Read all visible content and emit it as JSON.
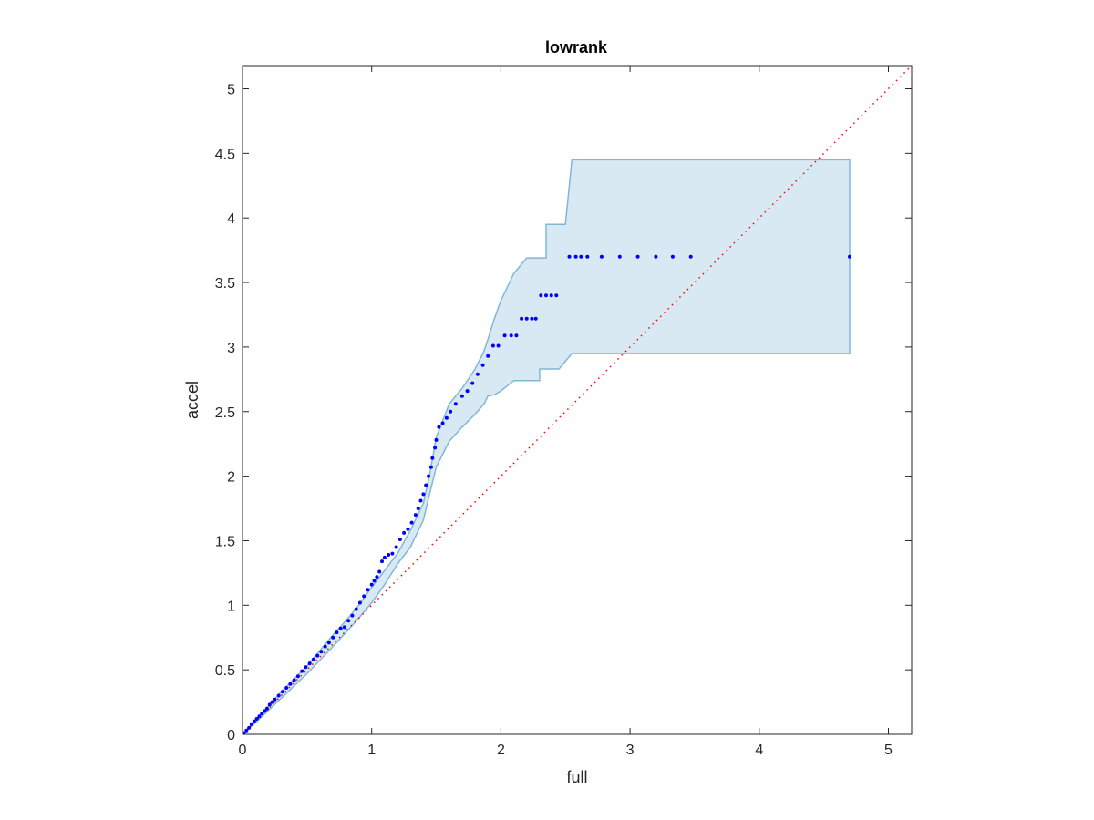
{
  "chart_data": {
    "type": "scatter",
    "title": "lowrank",
    "xlabel": "full",
    "ylabel": "accel",
    "xlim": [
      0,
      5.18
    ],
    "ylim": [
      0,
      5.18
    ],
    "xticks": [
      0,
      1,
      2,
      3,
      4,
      5
    ],
    "yticks": [
      0,
      0.5,
      1,
      1.5,
      2,
      2.5,
      3,
      3.5,
      4,
      4.5,
      5
    ],
    "xtick_labels": [
      "0",
      "1",
      "2",
      "3",
      "4",
      "5"
    ],
    "ytick_labels": [
      "0",
      "0.5",
      "1",
      "1.5",
      "2",
      "2.5",
      "3",
      "3.5",
      "4",
      "4.5",
      "5"
    ],
    "grid": false,
    "reference_line": {
      "style": "dotted",
      "color": "#ff0000",
      "from": [
        0,
        0
      ],
      "to": [
        5.18,
        5.18
      ]
    },
    "band": {
      "color": "#cfe3f1",
      "edge_color": "#7fb7d9",
      "upper": [
        [
          0,
          0
        ],
        [
          0.1,
          0.11
        ],
        [
          0.3,
          0.33
        ],
        [
          0.5,
          0.53
        ],
        [
          0.7,
          0.77
        ],
        [
          0.8,
          0.88
        ],
        [
          0.9,
          1.0
        ],
        [
          1.0,
          1.14
        ],
        [
          1.1,
          1.27
        ],
        [
          1.2,
          1.4
        ],
        [
          1.3,
          1.58
        ],
        [
          1.4,
          1.79
        ],
        [
          1.45,
          2.02
        ],
        [
          1.5,
          2.3
        ],
        [
          1.6,
          2.56
        ],
        [
          1.7,
          2.68
        ],
        [
          1.8,
          2.83
        ],
        [
          1.87,
          2.97
        ],
        [
          1.9,
          3.06
        ],
        [
          1.95,
          3.22
        ],
        [
          2.0,
          3.36
        ],
        [
          2.1,
          3.57
        ],
        [
          2.2,
          3.69
        ],
        [
          2.35,
          3.69
        ],
        [
          2.35,
          3.95
        ],
        [
          2.5,
          3.95
        ],
        [
          2.55,
          4.45
        ],
        [
          4.7,
          4.45
        ]
      ],
      "lower": [
        [
          0,
          0
        ],
        [
          0.1,
          0.09
        ],
        [
          0.3,
          0.28
        ],
        [
          0.5,
          0.47
        ],
        [
          0.7,
          0.68
        ],
        [
          0.8,
          0.79
        ],
        [
          0.9,
          0.9
        ],
        [
          1.0,
          1.02
        ],
        [
          1.1,
          1.16
        ],
        [
          1.2,
          1.32
        ],
        [
          1.3,
          1.45
        ],
        [
          1.4,
          1.66
        ],
        [
          1.45,
          1.87
        ],
        [
          1.5,
          2.07
        ],
        [
          1.6,
          2.27
        ],
        [
          1.7,
          2.38
        ],
        [
          1.8,
          2.48
        ],
        [
          1.87,
          2.56
        ],
        [
          1.9,
          2.62
        ],
        [
          1.95,
          2.63
        ],
        [
          2.0,
          2.66
        ],
        [
          2.1,
          2.74
        ],
        [
          2.3,
          2.74
        ],
        [
          2.3,
          2.83
        ],
        [
          2.45,
          2.83
        ],
        [
          2.55,
          2.95
        ],
        [
          4.7,
          2.95
        ]
      ]
    },
    "series": [
      {
        "color": "#0000ff",
        "x": [
          0.01,
          0.03,
          0.05,
          0.07,
          0.09,
          0.11,
          0.13,
          0.15,
          0.17,
          0.19,
          0.21,
          0.23,
          0.25,
          0.28,
          0.31,
          0.34,
          0.37,
          0.4,
          0.43,
          0.46,
          0.49,
          0.52,
          0.55,
          0.58,
          0.61,
          0.64,
          0.67,
          0.7,
          0.73,
          0.76,
          0.79,
          0.82,
          0.85,
          0.88,
          0.91,
          0.94,
          0.97,
          1.0,
          1.02,
          1.04,
          1.06,
          1.08,
          1.1,
          1.13,
          1.16,
          1.19,
          1.22,
          1.25,
          1.28,
          1.31,
          1.34,
          1.36,
          1.38,
          1.4,
          1.42,
          1.44,
          1.46,
          1.47,
          1.49,
          1.5,
          1.52,
          1.55,
          1.58,
          1.61,
          1.65,
          1.7,
          1.74,
          1.78,
          1.82,
          1.86,
          1.9,
          1.94,
          1.98,
          2.03,
          2.08,
          2.12,
          2.16,
          2.2,
          2.24,
          2.27,
          2.31,
          2.35,
          2.39,
          2.43,
          2.53,
          2.58,
          2.62,
          2.67,
          2.78,
          2.92,
          3.06,
          3.2,
          3.33,
          3.47,
          4.7
        ],
        "y": [
          0.01,
          0.03,
          0.05,
          0.08,
          0.1,
          0.12,
          0.14,
          0.16,
          0.18,
          0.2,
          0.23,
          0.25,
          0.27,
          0.3,
          0.33,
          0.36,
          0.39,
          0.42,
          0.45,
          0.49,
          0.52,
          0.55,
          0.58,
          0.61,
          0.64,
          0.68,
          0.71,
          0.75,
          0.79,
          0.82,
          0.83,
          0.88,
          0.92,
          0.97,
          1.02,
          1.07,
          1.12,
          1.16,
          1.19,
          1.22,
          1.26,
          1.34,
          1.37,
          1.39,
          1.4,
          1.45,
          1.51,
          1.56,
          1.59,
          1.64,
          1.7,
          1.75,
          1.81,
          1.86,
          1.93,
          2.0,
          2.07,
          2.14,
          2.22,
          2.28,
          2.38,
          2.41,
          2.45,
          2.5,
          2.56,
          2.62,
          2.66,
          2.72,
          2.79,
          2.86,
          2.93,
          3.01,
          3.01,
          3.09,
          3.09,
          3.09,
          3.22,
          3.22,
          3.22,
          3.22,
          3.4,
          3.4,
          3.4,
          3.4,
          3.7,
          3.7,
          3.7,
          3.7,
          3.7,
          3.7,
          3.7,
          3.7,
          3.7,
          3.7,
          3.7
        ]
      }
    ]
  }
}
